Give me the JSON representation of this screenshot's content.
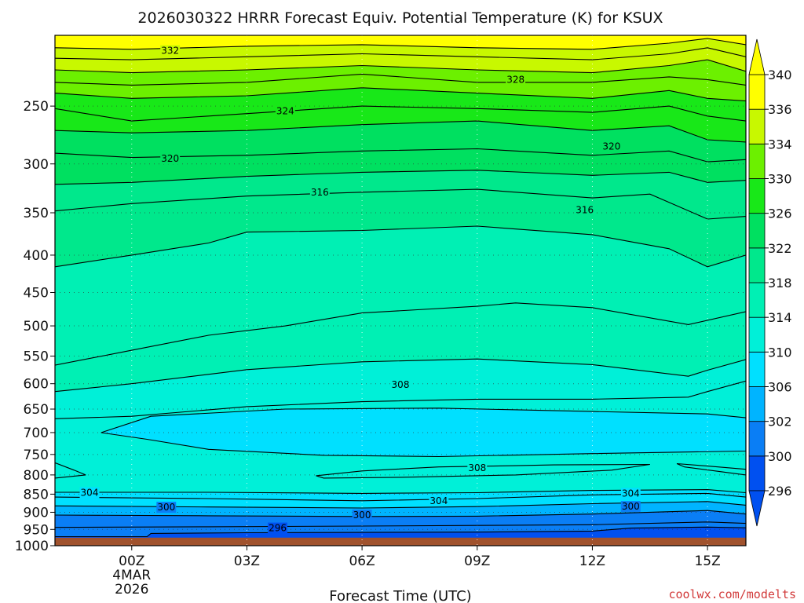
{
  "chart_data": {
    "type": "contour",
    "title": "2026030322 HRRR Forecast Equiv. Potential Temperature (K) for KSUX",
    "xlabel": "Forecast Time (UTC)",
    "ylabel": "",
    "x_ticks": [
      {
        "hour": 0,
        "label": "00Z",
        "sub1": "4MAR",
        "sub2": "2026"
      },
      {
        "hour": 3,
        "label": "03Z"
      },
      {
        "hour": 6,
        "label": "06Z"
      },
      {
        "hour": 9,
        "label": "09Z"
      },
      {
        "hour": 12,
        "label": "12Z"
      },
      {
        "hour": 15,
        "label": "15Z"
      }
    ],
    "xlim": [
      -2,
      16
    ],
    "y_scale": "log-pressure",
    "ylim_hPa": [
      1000,
      200
    ],
    "y_ticks": [
      250,
      300,
      350,
      400,
      450,
      500,
      550,
      600,
      650,
      700,
      750,
      800,
      850,
      900,
      950,
      1000
    ],
    "ground_level_hPa": 975,
    "ground_color": "#a0522d",
    "colorbar": {
      "levels": [
        296,
        300,
        302,
        306,
        310,
        314,
        318,
        322,
        326,
        330,
        334,
        336,
        340
      ],
      "colors": [
        "#0050f0",
        "#0a7ef5",
        "#00b4ff",
        "#00e0ff",
        "#00f0d8",
        "#00f0b4",
        "#00e88c",
        "#00e060",
        "#18e818",
        "#6cf000",
        "#c8f800",
        "#ffff00"
      ],
      "extend": "both"
    },
    "contours": [
      {
        "value": 296,
        "profile": [
          [
            -2,
            972
          ],
          [
            0.4,
            972
          ],
          [
            0.5,
            962
          ],
          [
            3,
            960
          ],
          [
            6,
            959
          ],
          [
            9,
            958
          ],
          [
            12,
            955
          ],
          [
            13,
            946
          ],
          [
            15,
            943
          ],
          [
            16,
            945
          ]
        ]
      },
      {
        "value": 298,
        "profile": [
          [
            -2,
            944
          ],
          [
            2,
            942
          ],
          [
            6,
            940
          ],
          [
            9,
            938
          ],
          [
            12,
            936
          ],
          [
            15,
            928
          ],
          [
            16,
            932
          ]
        ]
      },
      {
        "value": 300,
        "profile": [
          [
            -2,
            908
          ],
          [
            2,
            910
          ],
          [
            6,
            912
          ],
          [
            9,
            911
          ],
          [
            12,
            905
          ],
          [
            15,
            895
          ],
          [
            16,
            905
          ]
        ]
      },
      {
        "value": 302,
        "profile": [
          [
            -2,
            882
          ],
          [
            2,
            885
          ],
          [
            6,
            888
          ],
          [
            9,
            884
          ],
          [
            12,
            876
          ],
          [
            15,
            870
          ],
          [
            16,
            880
          ]
        ]
      },
      {
        "value": 304,
        "profile": [
          [
            -2,
            858
          ],
          [
            2,
            862
          ],
          [
            6,
            868
          ],
          [
            9,
            862
          ],
          [
            12,
            852
          ],
          [
            15,
            848
          ],
          [
            16,
            858
          ]
        ]
      },
      {
        "value": 306,
        "profile": [
          [
            -2,
            845
          ],
          [
            2,
            845
          ],
          [
            6,
            848
          ],
          [
            9,
            846
          ],
          [
            12,
            840
          ],
          [
            15,
            838
          ],
          [
            16,
            846
          ]
        ]
      },
      {
        "value": 308,
        "profile": [
          [
            -2,
            670
          ],
          [
            0,
            665
          ],
          [
            3,
            645
          ],
          [
            6,
            635
          ],
          [
            9,
            630
          ],
          [
            12,
            630
          ],
          [
            14.5,
            626
          ],
          [
            15,
            615
          ],
          [
            16,
            595
          ]
        ]
      },
      {
        "value": 310,
        "profile": [
          [
            -2,
            615
          ],
          [
            0,
            600
          ],
          [
            3,
            574
          ],
          [
            6,
            560
          ],
          [
            9,
            555
          ],
          [
            12,
            565
          ],
          [
            14.5,
            586
          ],
          [
            15,
            575
          ],
          [
            16,
            556
          ]
        ]
      },
      {
        "value": 312,
        "profile": [
          [
            -2,
            566
          ],
          [
            0,
            540
          ],
          [
            2,
            515
          ],
          [
            4,
            500
          ],
          [
            6,
            480
          ],
          [
            9,
            470
          ],
          [
            10,
            465
          ],
          [
            12,
            472
          ],
          [
            14.5,
            498
          ],
          [
            16,
            478
          ]
        ]
      },
      {
        "value": 314,
        "profile": [
          [
            -2,
            415
          ],
          [
            0,
            400
          ],
          [
            2,
            385
          ],
          [
            3,
            372
          ],
          [
            6,
            370
          ],
          [
            9,
            365
          ],
          [
            12,
            375
          ],
          [
            14,
            392
          ],
          [
            15,
            415
          ],
          [
            16,
            400
          ]
        ]
      },
      {
        "value": 316,
        "profile": [
          [
            -2,
            348
          ],
          [
            0,
            340
          ],
          [
            3,
            332
          ],
          [
            6,
            328
          ],
          [
            9,
            325
          ],
          [
            12,
            334
          ],
          [
            13.5,
            330
          ],
          [
            15,
            357
          ],
          [
            16,
            354
          ]
        ]
      },
      {
        "value": 318,
        "profile": [
          [
            -2,
            320
          ],
          [
            0,
            318
          ],
          [
            3,
            312
          ],
          [
            6,
            308
          ],
          [
            9,
            306
          ],
          [
            12,
            311
          ],
          [
            14,
            308
          ],
          [
            15,
            318
          ],
          [
            16,
            316
          ]
        ]
      },
      {
        "value": 320,
        "profile": [
          [
            -2,
            290
          ],
          [
            0,
            294
          ],
          [
            3,
            292
          ],
          [
            6,
            288
          ],
          [
            9,
            286
          ],
          [
            12,
            292
          ],
          [
            14,
            288
          ],
          [
            15,
            298
          ],
          [
            16,
            296
          ]
        ]
      },
      {
        "value": 322,
        "profile": [
          [
            -2,
            270
          ],
          [
            0,
            272
          ],
          [
            3,
            270
          ],
          [
            6,
            265
          ],
          [
            9,
            262
          ],
          [
            12,
            270
          ],
          [
            14,
            266
          ],
          [
            15,
            278
          ],
          [
            16,
            280
          ]
        ]
      },
      {
        "value": 324,
        "profile": [
          [
            -2,
            252
          ],
          [
            0,
            262
          ],
          [
            3,
            256
          ],
          [
            6,
            250
          ],
          [
            9,
            252
          ],
          [
            12,
            255
          ],
          [
            14,
            250
          ],
          [
            15,
            258
          ],
          [
            16,
            262
          ]
        ]
      },
      {
        "value": 326,
        "profile": [
          [
            -2,
            240
          ],
          [
            0,
            244
          ],
          [
            3,
            242
          ],
          [
            6,
            236
          ],
          [
            9,
            240
          ],
          [
            12,
            244
          ],
          [
            14,
            238
          ],
          [
            15,
            244
          ],
          [
            16,
            246
          ]
        ]
      },
      {
        "value": 328,
        "profile": [
          [
            -2,
            232
          ],
          [
            0,
            234
          ],
          [
            3,
            232
          ],
          [
            6,
            226
          ],
          [
            9,
            232
          ],
          [
            12,
            232
          ],
          [
            14,
            228
          ],
          [
            15,
            230
          ],
          [
            16,
            234
          ]
        ]
      },
      {
        "value": 330,
        "profile": [
          [
            -2,
            223
          ],
          [
            0,
            225
          ],
          [
            3,
            223
          ],
          [
            6,
            220
          ],
          [
            9,
            223
          ],
          [
            12,
            225
          ],
          [
            14,
            220
          ],
          [
            15,
            216
          ],
          [
            16,
            224
          ]
        ]
      },
      {
        "value": 332,
        "profile": [
          [
            -2,
            215
          ],
          [
            0,
            216
          ],
          [
            3,
            214
          ],
          [
            6,
            212
          ],
          [
            9,
            214
          ],
          [
            12,
            216
          ],
          [
            14,
            212
          ],
          [
            15,
            208
          ],
          [
            16,
            214
          ]
        ]
      },
      {
        "value": 334,
        "profile": [
          [
            -2,
            208
          ],
          [
            0,
            209
          ],
          [
            3,
            207
          ],
          [
            6,
            206
          ],
          [
            9,
            208
          ],
          [
            12,
            209
          ],
          [
            14,
            205
          ],
          [
            15,
            202
          ],
          [
            16,
            206
          ]
        ]
      }
    ],
    "cold_pockets": [
      {
        "value": 306,
        "points": [
          [
            -0.8,
            700
          ],
          [
            0.5,
            665
          ],
          [
            4,
            650
          ],
          [
            8,
            648
          ],
          [
            12,
            655
          ],
          [
            15,
            660
          ],
          [
            16,
            668
          ],
          [
            16,
            742
          ],
          [
            12,
            748
          ],
          [
            8,
            755
          ],
          [
            5,
            752
          ],
          [
            2,
            738
          ],
          [
            0.4,
            715
          ]
        ]
      },
      {
        "value": 310,
        "points": [
          [
            -2,
            770
          ],
          [
            -1.5,
            788
          ],
          [
            -1.2,
            800
          ],
          [
            -2,
            808
          ]
        ]
      },
      {
        "value": 310,
        "points": [
          [
            14.2,
            772
          ],
          [
            15,
            778
          ],
          [
            16,
            786
          ],
          [
            16,
            800
          ],
          [
            15.2,
            790
          ],
          [
            14.4,
            780
          ]
        ]
      },
      {
        "value": 308,
        "points": [
          [
            4.8,
            802
          ],
          [
            6,
            790
          ],
          [
            8,
            780
          ],
          [
            10,
            777
          ],
          [
            11,
            775
          ],
          [
            13.5,
            774
          ],
          [
            12.5,
            788
          ],
          [
            10,
            800
          ],
          [
            7,
            806
          ],
          [
            5,
            808
          ]
        ]
      }
    ],
    "contour_labels": [
      {
        "text": "332",
        "x": 1,
        "p": 210
      },
      {
        "text": "328",
        "x": 10,
        "p": 230
      },
      {
        "text": "324",
        "x": 4,
        "p": 254
      },
      {
        "text": "320",
        "x": 1,
        "p": 295
      },
      {
        "text": "320",
        "x": 12.5,
        "p": 284
      },
      {
        "text": "316",
        "x": 4.9,
        "p": 328
      },
      {
        "text": "316",
        "x": 11.8,
        "p": 347
      },
      {
        "text": "308",
        "x": 7,
        "p": 602
      },
      {
        "text": "308",
        "x": 9,
        "p": 783
      },
      {
        "text": "304",
        "x": -1.1,
        "p": 846
      },
      {
        "text": "304",
        "x": 8,
        "p": 868
      },
      {
        "text": "304",
        "x": 13,
        "p": 848
      },
      {
        "text": "300",
        "x": 0.9,
        "p": 886
      },
      {
        "text": "300",
        "x": 6,
        "p": 908
      },
      {
        "text": "300",
        "x": 13,
        "p": 884
      },
      {
        "text": "296",
        "x": 3.8,
        "p": 946
      }
    ]
  },
  "credit": "coolwx.com/modelts"
}
